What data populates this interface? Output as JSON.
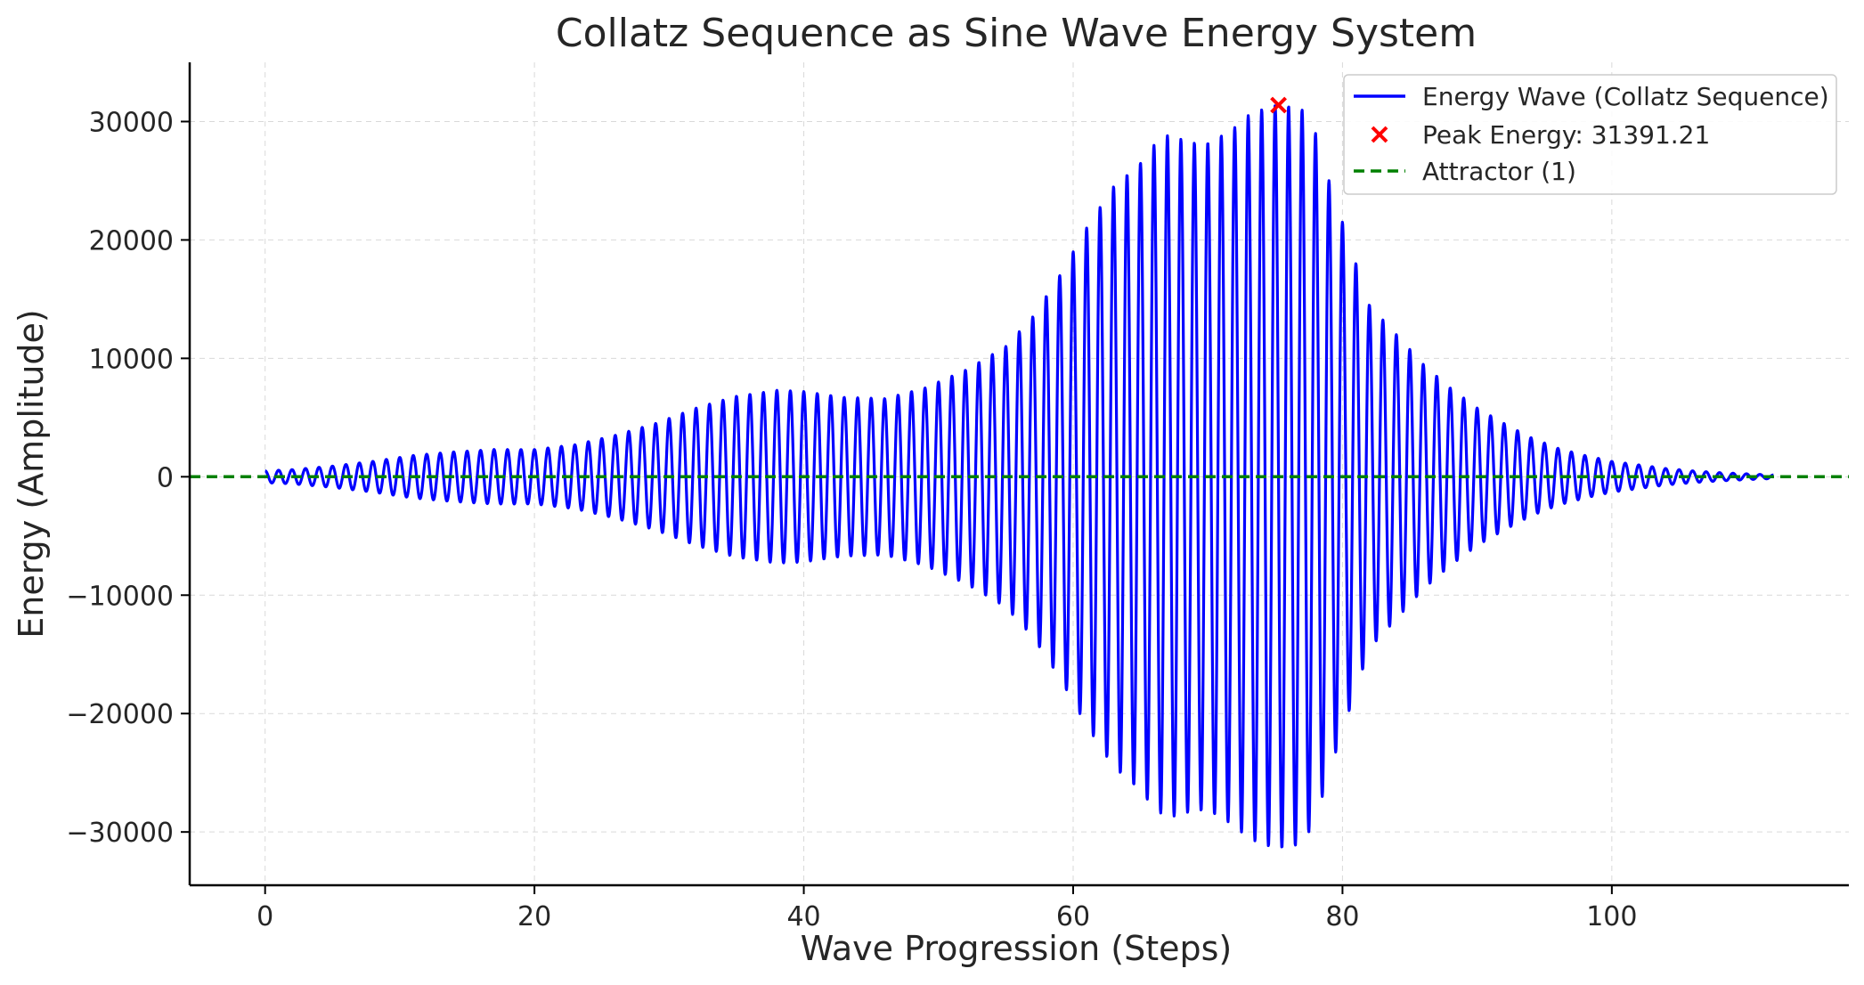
{
  "chart_data": {
    "type": "line",
    "title": "Collatz Sequence as Sine Wave Energy System",
    "xlabel": "Wave Progression (Steps)",
    "ylabel": "Energy (Amplitude)",
    "xlim": [
      -5.6,
      117.6
    ],
    "ylim": [
      -34500,
      35000
    ],
    "x_ticks": [
      0,
      20,
      40,
      60,
      80,
      100
    ],
    "y_ticks": [
      30000,
      20000,
      10000,
      0,
      -10000,
      -20000,
      -30000
    ],
    "x_tick_labels": [
      "0",
      "20",
      "40",
      "60",
      "80",
      "100"
    ],
    "y_tick_labels": [
      "30000",
      "20000",
      "10000",
      "0",
      "−10000",
      "−20000",
      "−30000"
    ],
    "grid": true,
    "legend_position": "top-right",
    "series": [
      {
        "name": "Energy Wave (Collatz Sequence)",
        "kind": "line",
        "color": "#0000ff",
        "x_range": [
          0,
          112
        ],
        "cycles_per_step": 1,
        "phase_at_zero": 0.25,
        "envelope": {
          "x": [
            0,
            2,
            5,
            8,
            11,
            14,
            17,
            20,
            23,
            26,
            29,
            32,
            35,
            38,
            40,
            43,
            46,
            49,
            52,
            55,
            57,
            59,
            61,
            63,
            65,
            66,
            67,
            68,
            69,
            70,
            71,
            72,
            73,
            74,
            75,
            76,
            77,
            78,
            79,
            80,
            81,
            82,
            84,
            86,
            88,
            90,
            92,
            94,
            96,
            98,
            100,
            102,
            104,
            106,
            108,
            110,
            112
          ],
          "y": [
            500,
            600,
            900,
            1300,
            1800,
            2100,
            2300,
            2300,
            2700,
            3500,
            4500,
            5800,
            6800,
            7300,
            7200,
            6700,
            6600,
            7500,
            9000,
            11000,
            13500,
            17000,
            21000,
            24500,
            26500,
            28000,
            28800,
            28500,
            28200,
            28200,
            28800,
            29500,
            30500,
            31000,
            31391.21,
            31300,
            31000,
            29000,
            25000,
            21500,
            18000,
            14500,
            12000,
            9500,
            7500,
            5800,
            4500,
            3300,
            2400,
            1800,
            1300,
            1000,
            700,
            500,
            350,
            250,
            150
          ]
        }
      },
      {
        "name": "Peak Energy: 31391.21",
        "kind": "marker",
        "marker": "x",
        "color": "#ff0000",
        "x": 75.25,
        "y": 31391.21
      },
      {
        "name": "Attractor (1)",
        "kind": "hline",
        "style": "dashed",
        "color": "#008000",
        "y": 1
      }
    ]
  }
}
